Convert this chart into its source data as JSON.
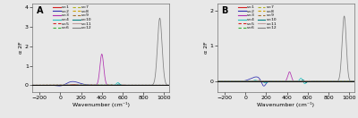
{
  "figsize": [
    4.0,
    1.32
  ],
  "dpi": 100,
  "panel_A": {
    "label": "A",
    "ylim": [
      -0.35,
      4.2
    ],
    "yticks": [
      0,
      1,
      2,
      3,
      4
    ],
    "ylabel": "α 2F",
    "xlim": [
      -270,
      1050
    ],
    "xticks": [
      -200,
      0,
      200,
      400,
      600,
      800,
      1000
    ],
    "xlabel": "Wavenumber (cm⁻¹)"
  },
  "panel_B": {
    "label": "B",
    "ylim": [
      -0.3,
      2.2
    ],
    "yticks": [
      0,
      1,
      2
    ],
    "ylabel": "α 2F",
    "xlim": [
      -270,
      1050
    ],
    "xticks": [
      -200,
      0,
      200,
      400,
      600,
      800,
      1000
    ],
    "xlabel": "Wavenumber (cm⁻¹)"
  },
  "legend_cols": [
    {
      "label": "ν=1",
      "color": "#d42020",
      "ls": "-"
    },
    {
      "label": "ν=2",
      "color": "#3030b0",
      "ls": "-"
    },
    {
      "label": "ν=3",
      "color": "#b030b0",
      "ls": "-"
    },
    {
      "label": "ν=4",
      "color": "#20c0c0",
      "ls": "-"
    },
    {
      "label": "ν=5",
      "color": "#d42020",
      "ls": "--"
    },
    {
      "label": "ν=6",
      "color": "#30b030",
      "ls": "--"
    },
    {
      "label": "ν=7",
      "color": "#b0b020",
      "ls": "--"
    },
    {
      "label": "ν=8",
      "color": "#d0a000",
      "ls": "--"
    },
    {
      "label": "ν=9",
      "color": "#a07030",
      "ls": "--"
    },
    {
      "label": "ν=10",
      "color": "#008080",
      "ls": "-"
    },
    {
      "label": "ν=11",
      "color": "#c0a0a0",
      "ls": "-"
    },
    {
      "label": "ν=12",
      "color": "#808080",
      "ls": "-"
    }
  ]
}
